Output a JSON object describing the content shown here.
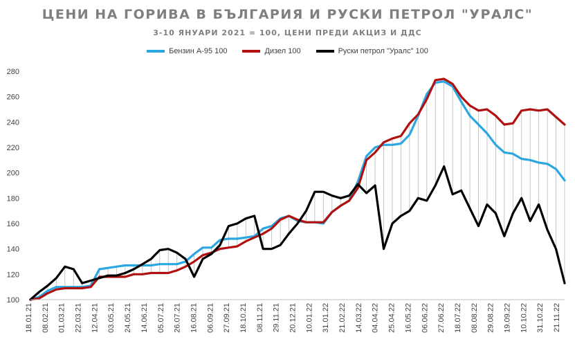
{
  "chart_data": {
    "type": "line",
    "title": "ЦЕНИ НА ГОРИВА В БЪЛГАРИЯ И РУСКИ ПЕТРОЛ \"УРАЛС\"",
    "subtitle": "3-10 ЯНУАРИ 2021 = 100, ЦЕНИ ПРЕДИ АКЦИЗ И ДДС",
    "legend_position": "top",
    "grid": false,
    "ylim": [
      100,
      280
    ],
    "yticks": [
      100,
      120,
      140,
      160,
      180,
      200,
      220,
      240,
      260,
      280
    ],
    "x_labels": [
      "18.01.21",
      "08.02.21",
      "01.03.21",
      "22.03.21",
      "12.04.21",
      "03.05.21",
      "24.05.21",
      "14.06.21",
      "05.07.21",
      "26.07.21",
      "16.08.21",
      "06.09.21",
      "27.09.21",
      "18.10.21",
      "08.11.21",
      "29.11.21",
      "20.12.21",
      "10.01.22",
      "31.01.22",
      "21.02.22",
      "14.03.22",
      "04.04.22",
      "25.04.22",
      "16.05.22",
      "06.06.22",
      "27.06.22",
      "18.07.22",
      "08.08.22",
      "29.08.22",
      "19.09.22",
      "10.10.22",
      "31.10.22",
      "21.11.22"
    ],
    "series": [
      {
        "name": "Бензин А-95 100",
        "color": "#2aa7e0",
        "values": [
          100,
          102,
          107,
          110,
          110,
          110,
          110,
          111,
          124,
          125,
          126,
          127,
          127,
          127,
          127,
          128,
          128,
          128,
          130,
          136,
          141,
          141,
          147,
          148,
          148,
          149,
          150,
          156,
          158,
          164,
          166,
          162,
          161,
          161,
          160,
          169,
          174,
          178,
          193,
          213,
          220,
          222,
          222,
          223,
          230,
          245,
          262,
          271,
          272,
          268,
          256,
          245,
          238,
          231,
          222,
          216,
          215,
          211,
          210,
          208,
          207,
          203,
          194
        ]
      },
      {
        "name": "Дизел 100",
        "color": "#b01010",
        "values": [
          100,
          101,
          105,
          108,
          109,
          109,
          109,
          110,
          118,
          118,
          118,
          118,
          120,
          120,
          121,
          121,
          121,
          123,
          126,
          130,
          135,
          137,
          140,
          141,
          142,
          146,
          149,
          152,
          156,
          163,
          166,
          163,
          161,
          161,
          161,
          169,
          174,
          178,
          188,
          210,
          216,
          224,
          227,
          229,
          239,
          246,
          258,
          273,
          274,
          270,
          260,
          253,
          249,
          250,
          245,
          238,
          239,
          249,
          250,
          249,
          250,
          244,
          238
        ]
      },
      {
        "name": "Руски петрол \"Уралс\" 100",
        "color": "#000000",
        "values": [
          100,
          106,
          111,
          117,
          126,
          124,
          113,
          115,
          117,
          119,
          119,
          121,
          124,
          128,
          132,
          139,
          140,
          137,
          132,
          118,
          132,
          136,
          143,
          158,
          160,
          164,
          166,
          140,
          140,
          143,
          152,
          160,
          170,
          185,
          185,
          182,
          180,
          182,
          191,
          184,
          190,
          140,
          160,
          166,
          170,
          180,
          178,
          190,
          205,
          183,
          186,
          172,
          158,
          175,
          168,
          150,
          168,
          180,
          162,
          175,
          155,
          140,
          113
        ]
      }
    ]
  }
}
